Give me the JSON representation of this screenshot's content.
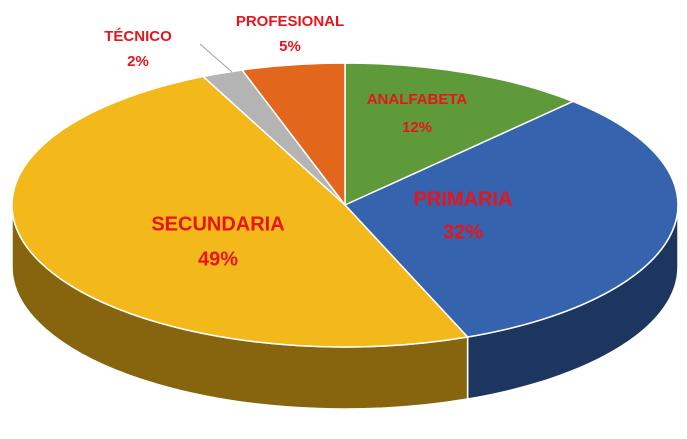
{
  "chart_data": {
    "type": "pie",
    "categories": [
      "ANALFABETA",
      "PRIMARIA",
      "SECUNDARIA",
      "TÉCNICO",
      "PROFESIONAL"
    ],
    "values": [
      12,
      32,
      49,
      2,
      5
    ],
    "value_labels": [
      "12%",
      "32%",
      "49%",
      "2%",
      "5%"
    ],
    "colors": [
      "#5e9a3a",
      "#3563ad",
      "#f3b81a",
      "#b4b4b4",
      "#e2661c"
    ]
  }
}
